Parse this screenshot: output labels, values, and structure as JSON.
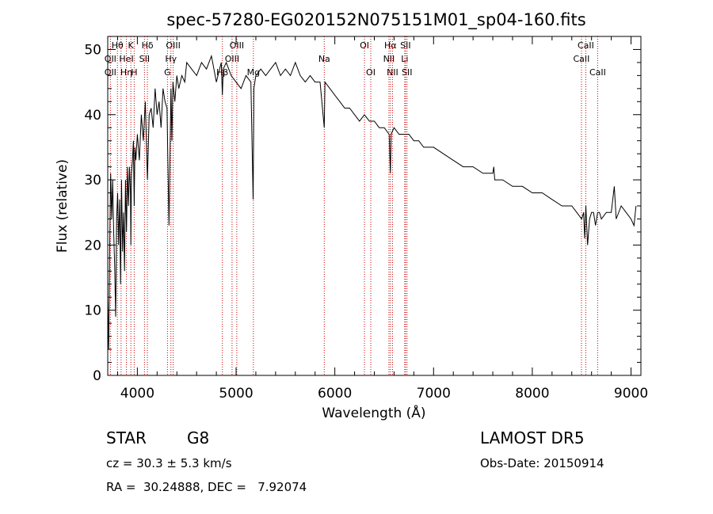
{
  "chart_data": {
    "type": "line",
    "title": "spec-57280-EG020152N075151M01_sp04-160.fits",
    "xlabel": "Wavelength (Å)",
    "ylabel": "Flux (relative)",
    "xlim": [
      3700,
      9100
    ],
    "ylim": [
      0,
      52
    ],
    "xticks": [
      4000,
      5000,
      6000,
      7000,
      8000,
      9000
    ],
    "yticks": [
      0,
      10,
      20,
      30,
      40,
      50
    ],
    "grid": false,
    "series": [
      {
        "x": [
          3700,
          3710,
          3720,
          3730,
          3740,
          3750,
          3760,
          3770,
          3780,
          3790,
          3800,
          3810,
          3820,
          3830,
          3840,
          3850,
          3860,
          3870,
          3880,
          3890,
          3900,
          3910,
          3920,
          3930,
          3934,
          3940,
          3950,
          3960,
          3968,
          3975,
          3985,
          4000,
          4020,
          4040,
          4060,
          4080,
          4102,
          4120,
          4140,
          4160,
          4180,
          4200,
          4220,
          4240,
          4260,
          4280,
          4300,
          4320,
          4340,
          4350,
          4360,
          4380,
          4400,
          4420,
          4450,
          4480,
          4500,
          4550,
          4600,
          4650,
          4700,
          4750,
          4800,
          4850,
          4861,
          4870,
          4900,
          4950,
          5000,
          5050,
          5100,
          5150,
          5172,
          5180,
          5200,
          5250,
          5300,
          5350,
          5400,
          5450,
          5500,
          5550,
          5600,
          5650,
          5700,
          5750,
          5800,
          5850,
          5893,
          5900,
          5950,
          6000,
          6050,
          6100,
          6150,
          6200,
          6250,
          6300,
          6350,
          6400,
          6450,
          6500,
          6550,
          6563,
          6570,
          6600,
          6650,
          6700,
          6750,
          6800,
          6850,
          6900,
          6950,
          7000,
          7100,
          7200,
          7300,
          7400,
          7500,
          7600,
          7610,
          7620,
          7700,
          7800,
          7900,
          8000,
          8100,
          8200,
          8300,
          8400,
          8450,
          8500,
          8520,
          8530,
          8542,
          8560,
          8580,
          8600,
          8620,
          8640,
          8662,
          8680,
          8700,
          8750,
          8800,
          8830,
          8850,
          8900,
          8950,
          9000,
          9030,
          9050
        ],
        "y": [
          12,
          4,
          20,
          31,
          24,
          30,
          22,
          17,
          9,
          24,
          28,
          20,
          27,
          14,
          30,
          19,
          25,
          16,
          30,
          22,
          32,
          26,
          32,
          28,
          20,
          31,
          33,
          36,
          26,
          35,
          33,
          37,
          33,
          40,
          36,
          42,
          30,
          40,
          41,
          38,
          44,
          40,
          42,
          38,
          44,
          42,
          41,
          23,
          44,
          36,
          45,
          42,
          46,
          44,
          46,
          45,
          48,
          47,
          46,
          48,
          47,
          49,
          45,
          48,
          43,
          47,
          48,
          46,
          45,
          44,
          46,
          45,
          27,
          44,
          46,
          47,
          46,
          47,
          48,
          46,
          47,
          46,
          48,
          46,
          45,
          46,
          45,
          45,
          38,
          45,
          44,
          43,
          42,
          41,
          41,
          40,
          39,
          40,
          39,
          39,
          38,
          38,
          37,
          31,
          37,
          38,
          37,
          37,
          37,
          36,
          36,
          35,
          35,
          35,
          34,
          33,
          32,
          32,
          31,
          31,
          32,
          30,
          30,
          29,
          29,
          28,
          28,
          27,
          26,
          26,
          25,
          24,
          25,
          21,
          26,
          20,
          24,
          25,
          25,
          23,
          25,
          25,
          24,
          25,
          25,
          29,
          24,
          26,
          25,
          24,
          23,
          26
        ]
      }
    ],
    "line_markers": [
      {
        "label": "OII",
        "wave": 3727,
        "row": 2
      },
      {
        "label": "Hθ",
        "wave": 3798,
        "row": 1
      },
      {
        "label": "OII",
        "wave": 3727,
        "row": 3
      },
      {
        "label": "HeI",
        "wave": 3889,
        "row": 2
      },
      {
        "label": "K",
        "wave": 3934,
        "row": 1
      },
      {
        "label": "Hη",
        "wave": 3889,
        "row": 3
      },
      {
        "label": "H",
        "wave": 3968,
        "row": 3
      },
      {
        "label": "Hδ",
        "wave": 4102,
        "row": 1
      },
      {
        "label": "SII",
        "wave": 4072,
        "row": 2
      },
      {
        "label": "OIII",
        "wave": 4363,
        "row": 1
      },
      {
        "label": "Hγ",
        "wave": 4340,
        "row": 2
      },
      {
        "label": "G",
        "wave": 4305,
        "row": 3
      },
      {
        "label": "OIII",
        "wave": 5007,
        "row": 1
      },
      {
        "label": "OIII",
        "wave": 4959,
        "row": 2
      },
      {
        "label": "Hβ",
        "wave": 4861,
        "row": 3
      },
      {
        "label": "Mg",
        "wave": 5175,
        "row": 3
      },
      {
        "label": "Na",
        "wave": 5893,
        "row": 2
      },
      {
        "label": "OI",
        "wave": 6300,
        "row": 1
      },
      {
        "label": "OI",
        "wave": 6364,
        "row": 3
      },
      {
        "label": "Hα",
        "wave": 6563,
        "row": 1
      },
      {
        "label": "SII",
        "wave": 6716,
        "row": 1
      },
      {
        "label": "NII",
        "wave": 6548,
        "row": 2
      },
      {
        "label": "Li",
        "wave": 6708,
        "row": 2
      },
      {
        "label": "NII",
        "wave": 6584,
        "row": 3
      },
      {
        "label": "SII",
        "wave": 6731,
        "row": 3
      },
      {
        "label": "CaII",
        "wave": 8542,
        "row": 1
      },
      {
        "label": "CaII",
        "wave": 8498,
        "row": 2
      },
      {
        "label": "CaII",
        "wave": 8662,
        "row": 3
      }
    ],
    "line_wavelengths": [
      3727,
      3798,
      3835,
      3889,
      3934,
      3968,
      4072,
      4102,
      4305,
      4340,
      4363,
      4861,
      4959,
      5007,
      5175,
      5893,
      6300,
      6364,
      6548,
      6563,
      6584,
      6708,
      6716,
      6731,
      8498,
      8542,
      8662
    ]
  },
  "footer": {
    "object_class": "STAR",
    "subclass": "G8",
    "survey": "LAMOST DR5",
    "cz": "cz = 30.3 ± 5.3 km/s",
    "obs_date": "Obs-Date: 20150914",
    "coords": "RA =  30.24888, DEC =   7.92074"
  },
  "colors": {
    "spectrum": "#000000",
    "line_marker": "#cc0000",
    "axis": "#000000"
  }
}
